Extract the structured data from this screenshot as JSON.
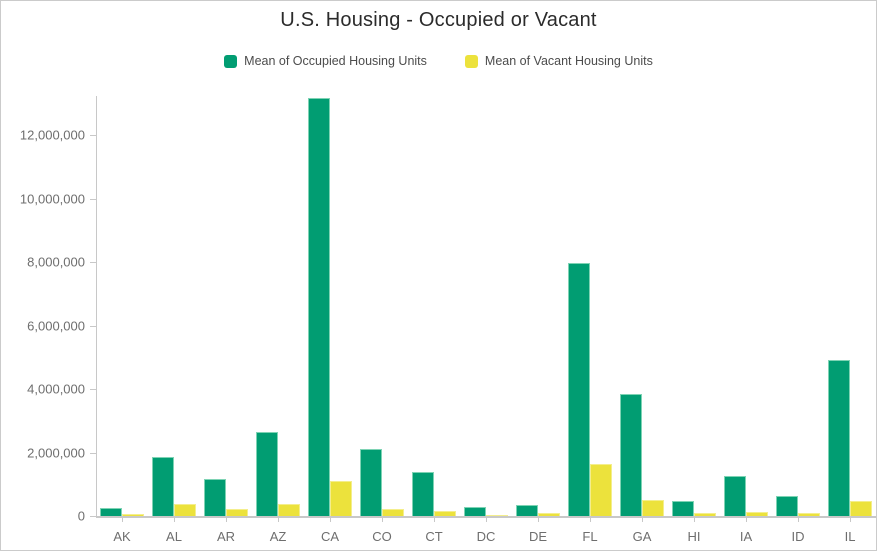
{
  "title": "U.S. Housing - Occupied or Vacant",
  "colors": {
    "background": "#FFFFFF",
    "frame_border": "#CBCBCB",
    "axis": "#C8C8C8",
    "tick_text": "#6E6E6E",
    "title_text": "#2B2B2B",
    "legend_text": "#4C4C4C",
    "occupied_green": "#019D72",
    "occupied_green_edge": "#7ED3B4",
    "vacant_yellow": "#ECE23C",
    "vacant_yellow_edge": "#F4EE8C"
  },
  "chart_data": {
    "type": "bar",
    "title": "U.S. Housing - Occupied or Vacant",
    "xlabel": "",
    "ylabel": "",
    "grid": false,
    "legend_position": "top",
    "categories": [
      "AK",
      "AL",
      "AR",
      "AZ",
      "CA",
      "CO",
      "CT",
      "DC",
      "DE",
      "FL",
      "GA",
      "HI",
      "IA",
      "ID",
      "IL"
    ],
    "series": [
      {
        "name": "Mean of Occupied Housing Units",
        "color": "#019D72",
        "edge_color": "#7ED3B4",
        "values": [
          250000,
          1870000,
          1160000,
          2640000,
          13170000,
          2120000,
          1390000,
          275000,
          350000,
          7970000,
          3830000,
          470000,
          1260000,
          640000,
          4900000
        ]
      },
      {
        "name": "Mean of Vacant Housing Units",
        "color": "#ECE23C",
        "edge_color": "#F4EE8C",
        "values": [
          70000,
          380000,
          210000,
          390000,
          1100000,
          230000,
          160000,
          30000,
          85000,
          1630000,
          500000,
          85000,
          135000,
          85000,
          480000
        ]
      }
    ],
    "ylim": [
      0,
      13400000
    ],
    "yticks": [
      0,
      2000000,
      4000000,
      6000000,
      8000000,
      10000000,
      12000000
    ]
  }
}
